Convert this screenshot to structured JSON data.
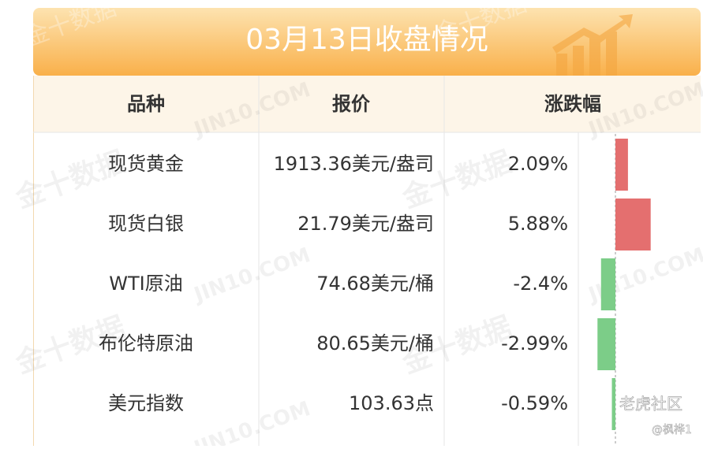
{
  "title": "03月13日收盘情况",
  "table": {
    "headers": [
      "品种",
      "报价",
      "涨跌幅"
    ],
    "rows": [
      {
        "name": "现货黄金",
        "price": "1913.36美元/盎司",
        "change": {
          "value": 2.09,
          "label": "2.09%"
        }
      },
      {
        "name": "现货白银",
        "price": "21.79美元/盎司",
        "change": {
          "value": 5.88,
          "label": "5.88%"
        }
      },
      {
        "name": "WTI原油",
        "price": "74.68美元/桶",
        "change": {
          "value": -2.4,
          "label": "-2.4%"
        }
      },
      {
        "name": "布伦特原油",
        "price": "80.65美元/桶",
        "change": {
          "value": -2.99,
          "label": "-2.99%"
        }
      },
      {
        "name": "美元指数",
        "price": "103.63点",
        "change": {
          "value": -0.59,
          "label": "-0.59%"
        }
      }
    ]
  },
  "watermarks": {
    "cn": "金十数据",
    "en": "JIN10.COM",
    "tiger": "老虎社区",
    "user": "@枫桦1"
  }
}
